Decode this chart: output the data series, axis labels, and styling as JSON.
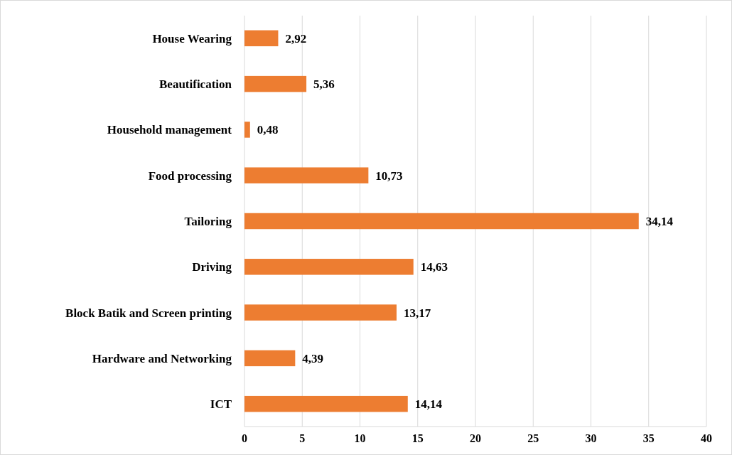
{
  "chart_data": {
    "type": "bar",
    "orientation": "horizontal",
    "categories": [
      "House Wearing",
      "Beautification",
      "Household management",
      "Food processing",
      "Tailoring ",
      "Driving",
      "Block Batik and Screen printing",
      "Hardware and Networking",
      "ICT"
    ],
    "values": [
      2.92,
      5.36,
      0.48,
      10.73,
      34.14,
      14.63,
      13.17,
      4.39,
      14.14
    ],
    "value_labels": [
      "2,92",
      "5,36",
      "0,48",
      "10,73",
      "34,14",
      "14,63",
      "13,17",
      "4,39",
      "14,14"
    ],
    "color": "#ed7d31",
    "xlim": [
      0,
      40
    ],
    "xticks": [
      0,
      5,
      10,
      15,
      20,
      25,
      30,
      35,
      40
    ],
    "grid": "x"
  }
}
